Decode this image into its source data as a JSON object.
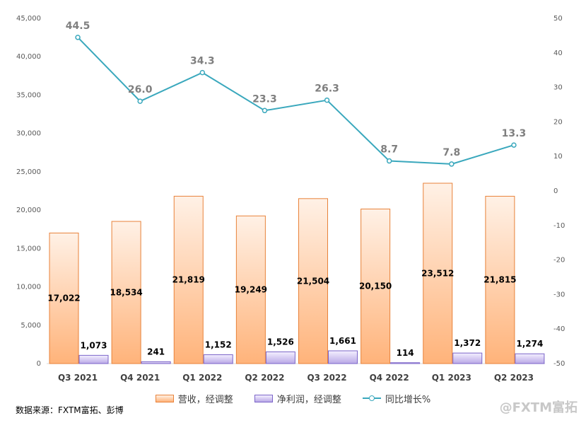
{
  "chart_data": {
    "type": "bar",
    "categories": [
      "Q3 2021",
      "Q4 2021",
      "Q1 2022",
      "Q2 2022",
      "Q3 2022",
      "Q4 2022",
      "Q1 2023",
      "Q2 2023"
    ],
    "series": [
      {
        "name": "营收，经调整",
        "type": "bar",
        "axis": "left",
        "color": "#ffb37a",
        "values": [
          17022,
          18534,
          21819,
          19249,
          21504,
          20150,
          23512,
          21815
        ],
        "labels": [
          "17,022",
          "18,534",
          "21,819",
          "19,249",
          "21,504",
          "20,150",
          "23,512",
          "21,815"
        ]
      },
      {
        "name": "净利润，经调整",
        "type": "bar",
        "axis": "left",
        "color": "#b9a8e6",
        "values": [
          1073,
          241,
          1152,
          1526,
          1661,
          114,
          1372,
          1274
        ],
        "labels": [
          "1,073",
          "241",
          "1,152",
          "1,526",
          "1,661",
          "114",
          "1,372",
          "1,274"
        ]
      },
      {
        "name": "同比增长%",
        "type": "line",
        "axis": "right",
        "color": "#3aa8bd",
        "values": [
          44.5,
          26.0,
          34.3,
          23.3,
          26.3,
          8.7,
          7.8,
          13.3
        ],
        "labels": [
          "44.5",
          "26.0",
          "34.3",
          "23.3",
          "26.3",
          "8.7",
          "7.8",
          "13.3"
        ]
      }
    ],
    "y_left": {
      "min": 0,
      "max": 45000,
      "step": 5000,
      "ticks": [
        "0",
        "5,000",
        "10,000",
        "15,000",
        "20,000",
        "25,000",
        "30,000",
        "35,000",
        "40,000",
        "45,000"
      ]
    },
    "y_right": {
      "min": -50,
      "max": 50,
      "step": 10,
      "ticks": [
        "-50",
        "-40",
        "-30",
        "-20",
        "-10",
        "0",
        "10",
        "20",
        "30",
        "40",
        "50"
      ]
    },
    "grid": false,
    "legend_position": "bottom"
  },
  "legend": {
    "revenue": "营收，经调整",
    "profit": "净利润，经调整",
    "growth": "同比增长%"
  },
  "source": "数据来源：FXTM富拓、彭博",
  "watermark": "@FXTM富拓"
}
